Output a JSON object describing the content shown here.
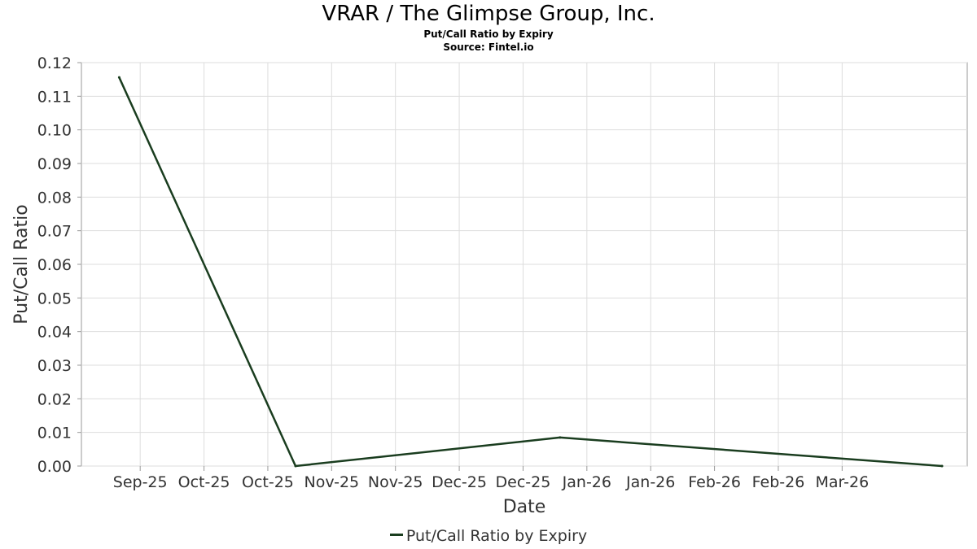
{
  "chart_data": {
    "type": "line",
    "title": "VRAR / The Glimpse Group, Inc.",
    "subtitle": "Put/Call Ratio by Expiry",
    "source": "Source: Fintel.io",
    "xlabel": "Date",
    "ylabel": "Put/Call Ratio",
    "ylim": [
      0,
      0.12
    ],
    "y_ticks": [
      "0.00",
      "0.01",
      "0.02",
      "0.03",
      "0.04",
      "0.05",
      "0.06",
      "0.07",
      "0.08",
      "0.09",
      "0.10",
      "0.11",
      "0.12"
    ],
    "x_ticks": [
      "Sep-25",
      "Oct-25",
      "Oct-25",
      "Nov-25",
      "Nov-25",
      "Dec-25",
      "Dec-25",
      "Jan-26",
      "Jan-26",
      "Feb-26",
      "Feb-26",
      "Mar-26"
    ],
    "grid": true,
    "legend_position": "bottom-center",
    "series": [
      {
        "name": "Put/Call Ratio by Expiry",
        "color": "#1a3d1f",
        "points": [
          {
            "x": "2025-09-05",
            "y": 0.1156
          },
          {
            "x": "2025-10-17",
            "y": 0.0
          },
          {
            "x": "2025-12-19",
            "y": 0.0085
          },
          {
            "x": "2026-03-20",
            "y": 0.0
          }
        ]
      }
    ]
  }
}
